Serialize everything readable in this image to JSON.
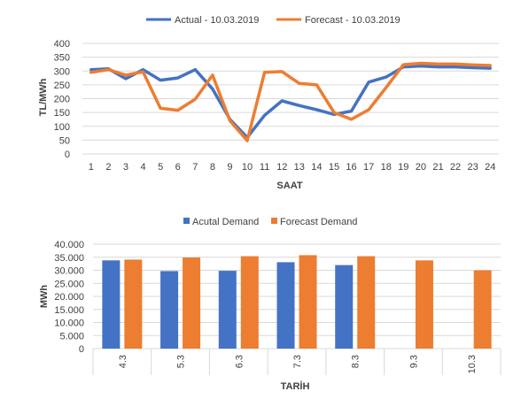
{
  "colors": {
    "actual": "#4472C4",
    "forecast": "#ED7D31",
    "grid": "#D9D9D9",
    "text": "#404040"
  },
  "chart_data": [
    {
      "type": "line",
      "xlabel": "SAAT",
      "ylabel": "TL/MWh",
      "ylim": [
        0,
        400
      ],
      "yticks": [
        "0",
        "50",
        "100",
        "150",
        "200",
        "250",
        "300",
        "350",
        "400"
      ],
      "grid": true,
      "legend_position": "top",
      "x": [
        "1",
        "2",
        "3",
        "4",
        "5",
        "6",
        "7",
        "8",
        "9",
        "10",
        "11",
        "12",
        "13",
        "14",
        "15",
        "16",
        "17",
        "18",
        "19",
        "20",
        "21",
        "22",
        "23",
        "24"
      ],
      "series": [
        {
          "name": "Actual - 10.03.2019",
          "values": [
            305,
            308,
            272,
            305,
            267,
            275,
            305,
            235,
            125,
            60,
            140,
            192,
            175,
            160,
            143,
            155,
            260,
            278,
            315,
            318,
            315,
            315,
            312,
            310
          ]
        },
        {
          "name": "Forecast - 10.03.2019",
          "values": [
            295,
            305,
            285,
            297,
            165,
            158,
            198,
            285,
            120,
            48,
            295,
            298,
            255,
            250,
            150,
            125,
            160,
            240,
            323,
            328,
            325,
            325,
            322,
            320
          ]
        }
      ]
    },
    {
      "type": "bar",
      "xlabel": "TARİH",
      "ylabel": "MWh",
      "ylim": [
        0,
        40000
      ],
      "yticks": [
        "0",
        "5.000",
        "10.000",
        "15.000",
        "20.000",
        "25.000",
        "30.000",
        "35.000",
        "40.000"
      ],
      "grid": true,
      "legend_position": "top",
      "categories": [
        "4.3",
        "5.3",
        "6.3",
        "7.3",
        "8.3",
        "9.3",
        "10.3"
      ],
      "series": [
        {
          "name": "Acutal Demand",
          "values": [
            33800,
            29700,
            29800,
            33100,
            32000,
            null,
            null
          ]
        },
        {
          "name": "Forecast Demand",
          "values": [
            34100,
            34900,
            35400,
            35800,
            35400,
            33800,
            30000
          ]
        }
      ]
    }
  ]
}
